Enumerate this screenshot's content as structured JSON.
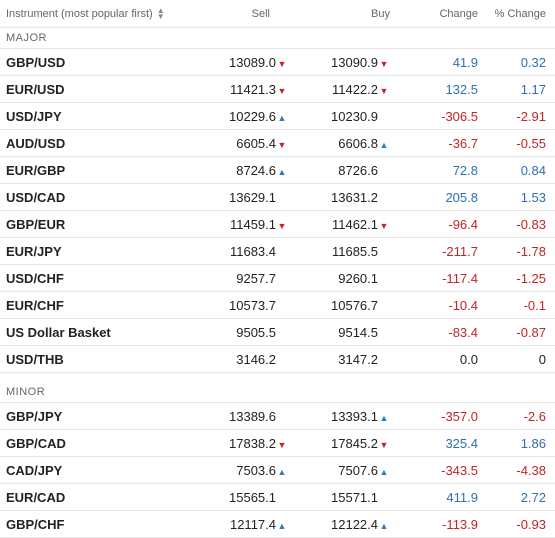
{
  "header": {
    "instrument": "Instrument (most popular first)",
    "sell": "Sell",
    "buy": "Buy",
    "change": "Change",
    "pct_change": "% Change"
  },
  "sections": {
    "major": "MAJOR",
    "minor": "MINOR"
  },
  "major": [
    {
      "name": "GBP/USD",
      "sell": "13089.0",
      "sell_dir": "down",
      "buy": "13090.9",
      "buy_dir": "down",
      "change": "41.9",
      "pct": "0.32",
      "sign": "pos"
    },
    {
      "name": "EUR/USD",
      "sell": "11421.3",
      "sell_dir": "down",
      "buy": "11422.2",
      "buy_dir": "down",
      "change": "132.5",
      "pct": "1.17",
      "sign": "pos"
    },
    {
      "name": "USD/JPY",
      "sell": "10229.6",
      "sell_dir": "up",
      "buy": "10230.9",
      "buy_dir": "",
      "change": "-306.5",
      "pct": "-2.91",
      "sign": "neg"
    },
    {
      "name": "AUD/USD",
      "sell": "6605.4",
      "sell_dir": "down",
      "buy": "6606.8",
      "buy_dir": "up",
      "change": "-36.7",
      "pct": "-0.55",
      "sign": "neg"
    },
    {
      "name": "EUR/GBP",
      "sell": "8724.6",
      "sell_dir": "up",
      "buy": "8726.6",
      "buy_dir": "",
      "change": "72.8",
      "pct": "0.84",
      "sign": "pos"
    },
    {
      "name": "USD/CAD",
      "sell": "13629.1",
      "sell_dir": "",
      "buy": "13631.2",
      "buy_dir": "",
      "change": "205.8",
      "pct": "1.53",
      "sign": "pos"
    },
    {
      "name": "GBP/EUR",
      "sell": "11459.1",
      "sell_dir": "down",
      "buy": "11462.1",
      "buy_dir": "down",
      "change": "-96.4",
      "pct": "-0.83",
      "sign": "neg"
    },
    {
      "name": "EUR/JPY",
      "sell": "11683.4",
      "sell_dir": "",
      "buy": "11685.5",
      "buy_dir": "",
      "change": "-211.7",
      "pct": "-1.78",
      "sign": "neg"
    },
    {
      "name": "USD/CHF",
      "sell": "9257.7",
      "sell_dir": "",
      "buy": "9260.1",
      "buy_dir": "",
      "change": "-117.4",
      "pct": "-1.25",
      "sign": "neg"
    },
    {
      "name": "EUR/CHF",
      "sell": "10573.7",
      "sell_dir": "",
      "buy": "10576.7",
      "buy_dir": "",
      "change": "-10.4",
      "pct": "-0.1",
      "sign": "neg"
    },
    {
      "name": "US Dollar Basket",
      "sell": "9505.5",
      "sell_dir": "",
      "buy": "9514.5",
      "buy_dir": "",
      "change": "-83.4",
      "pct": "-0.87",
      "sign": "neg"
    },
    {
      "name": "USD/THB",
      "sell": "3146.2",
      "sell_dir": "",
      "buy": "3147.2",
      "buy_dir": "",
      "change": "0.0",
      "pct": "0",
      "sign": "zero"
    }
  ],
  "minor": [
    {
      "name": "GBP/JPY",
      "sell": "13389.6",
      "sell_dir": "",
      "buy": "13393.1",
      "buy_dir": "up",
      "change": "-357.0",
      "pct": "-2.6",
      "sign": "neg"
    },
    {
      "name": "GBP/CAD",
      "sell": "17838.2",
      "sell_dir": "down",
      "buy": "17845.2",
      "buy_dir": "down",
      "change": "325.4",
      "pct": "1.86",
      "sign": "pos"
    },
    {
      "name": "CAD/JPY",
      "sell": "7503.6",
      "sell_dir": "up",
      "buy": "7507.6",
      "buy_dir": "up",
      "change": "-343.5",
      "pct": "-4.38",
      "sign": "neg"
    },
    {
      "name": "EUR/CAD",
      "sell": "15565.1",
      "sell_dir": "",
      "buy": "15571.1",
      "buy_dir": "",
      "change": "411.9",
      "pct": "2.72",
      "sign": "pos"
    },
    {
      "name": "GBP/CHF",
      "sell": "12117.4",
      "sell_dir": "up",
      "buy": "12122.4",
      "buy_dir": "up",
      "change": "-113.9",
      "pct": "-0.93",
      "sign": "neg"
    }
  ],
  "colors": {
    "positive": "#2f6fb3",
    "negative": "#c42424",
    "arrow_down": "#cc2222",
    "arrow_up": "#2f7bc2"
  },
  "icons": {
    "sort": "sort-updown-icon",
    "arrow_up": "triangle-up-icon",
    "arrow_down": "triangle-down-icon"
  }
}
